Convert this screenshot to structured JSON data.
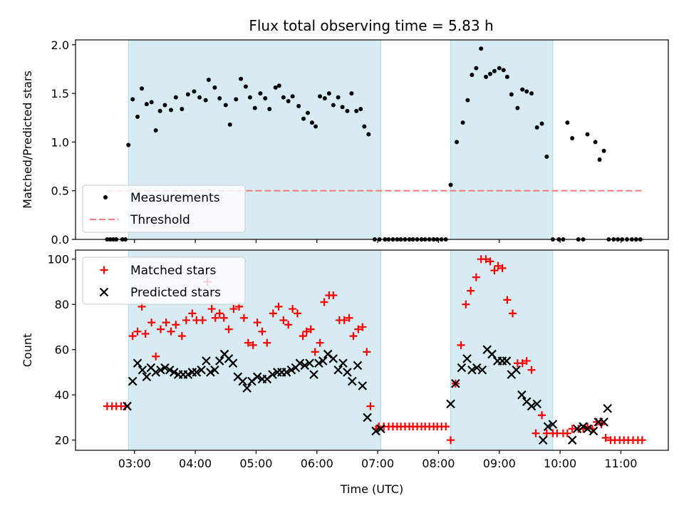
{
  "chart_data": [
    {
      "type": "scatter",
      "title": "Flux total observing time = 5.83 h",
      "xlabel": "",
      "ylabel": "Matched/Predicted stars",
      "xlim": [
        2.03,
        11.78
      ],
      "ylim": [
        0,
        2.05
      ],
      "yticks": [
        0.0,
        0.5,
        1.0,
        1.5,
        2.0
      ],
      "ytick_labels": [
        "0.0",
        "0.5",
        "1.0",
        "1.5",
        "2.0"
      ],
      "legend_position": "lower-left",
      "legend": [
        "Measurements",
        "Threshold"
      ],
      "shaded_intervals": [
        [
          2.9,
          7.05
        ],
        [
          8.2,
          9.88
        ]
      ],
      "threshold": 0.5,
      "threshold_range": [
        2.55,
        11.35
      ],
      "series": [
        {
          "name": "Measurements",
          "marker": "dot",
          "x": [
            2.55,
            2.6,
            2.65,
            2.7,
            2.8,
            2.85,
            2.9,
            2.97,
            3.05,
            3.12,
            3.2,
            3.28,
            3.35,
            3.42,
            3.5,
            3.6,
            3.68,
            3.78,
            3.88,
            3.98,
            4.07,
            4.17,
            4.22,
            4.32,
            4.4,
            4.5,
            4.57,
            4.67,
            4.75,
            4.83,
            4.9,
            4.98,
            5.07,
            5.15,
            5.22,
            5.32,
            5.38,
            5.45,
            5.53,
            5.6,
            5.7,
            5.78,
            5.85,
            5.92,
            5.98,
            6.05,
            6.13,
            6.2,
            6.27,
            6.35,
            6.42,
            6.5,
            6.57,
            6.65,
            6.72,
            6.78,
            6.85,
            6.95,
            7.03,
            7.12,
            7.18,
            7.25,
            7.32,
            7.38,
            7.45,
            7.52,
            7.58,
            7.65,
            7.72,
            7.78,
            7.85,
            7.92,
            7.98,
            8.05,
            8.12,
            8.2,
            8.3,
            8.4,
            8.48,
            8.55,
            8.62,
            8.7,
            8.78,
            8.85,
            8.92,
            9.0,
            9.07,
            9.13,
            9.2,
            9.3,
            9.38,
            9.45,
            9.53,
            9.62,
            9.7,
            9.78,
            9.88,
            9.98,
            10.05,
            10.12,
            10.2,
            10.3,
            10.38,
            10.45,
            10.58,
            10.65,
            10.72,
            10.8,
            10.88,
            10.95,
            11.02,
            11.1,
            11.18,
            11.25,
            11.32
          ],
          "y": [
            0.0,
            0.0,
            0.0,
            0.0,
            0.0,
            0.0,
            0.97,
            1.44,
            1.26,
            1.55,
            1.39,
            1.41,
            1.12,
            1.32,
            1.38,
            1.33,
            1.46,
            1.34,
            1.49,
            1.52,
            1.46,
            1.43,
            1.64,
            1.56,
            1.45,
            1.38,
            1.18,
            1.44,
            1.65,
            1.57,
            1.46,
            1.35,
            1.5,
            1.45,
            1.34,
            1.56,
            1.58,
            1.46,
            1.42,
            1.47,
            1.37,
            1.24,
            1.3,
            1.2,
            1.16,
            1.47,
            1.45,
            1.5,
            1.38,
            1.46,
            1.36,
            1.32,
            1.5,
            1.32,
            1.34,
            1.16,
            1.08,
            0.0,
            0.0,
            0.0,
            0.0,
            0.0,
            0.0,
            0.0,
            0.0,
            0.0,
            0.0,
            0.0,
            0.0,
            0.0,
            0.0,
            0.0,
            0.0,
            0.0,
            0.0,
            0.56,
            1.0,
            1.2,
            1.43,
            1.69,
            1.76,
            1.96,
            1.67,
            1.7,
            1.73,
            1.76,
            1.74,
            1.67,
            1.49,
            1.35,
            1.54,
            1.52,
            1.5,
            1.15,
            1.19,
            0.85,
            0.0,
            0.0,
            0.0,
            1.2,
            1.04,
            0.0,
            0.0,
            1.08,
            1.0,
            0.82,
            0.91,
            0.0,
            0.0,
            0.0,
            0.0,
            0.0,
            0.0,
            0.0,
            0.0
          ]
        }
      ]
    },
    {
      "type": "scatter",
      "title": "",
      "xlabel": "Time (UTC)",
      "ylabel": "Count",
      "xlim": [
        2.03,
        11.78
      ],
      "ylim": [
        15.5,
        104
      ],
      "yticks": [
        20,
        40,
        60,
        80,
        100
      ],
      "ytick_labels": [
        "20",
        "40",
        "60",
        "80",
        "100"
      ],
      "xticks": [
        3,
        4,
        5,
        6,
        7,
        8,
        9,
        10,
        11
      ],
      "xtick_labels": [
        "03:00",
        "04:00",
        "05:00",
        "06:00",
        "07:00",
        "08:00",
        "09:00",
        "10:00",
        "11:00"
      ],
      "legend_position": "upper-left",
      "legend": [
        "Matched stars",
        "Predicted stars"
      ],
      "shaded_intervals": [
        [
          2.9,
          7.05
        ],
        [
          8.2,
          9.88
        ]
      ],
      "series": [
        {
          "name": "Matched stars",
          "marker": "plus",
          "color": "#ff0000",
          "x": [
            2.55,
            2.63,
            2.7,
            2.78,
            2.85,
            2.97,
            3.05,
            3.12,
            3.18,
            3.28,
            3.35,
            3.43,
            3.52,
            3.6,
            3.68,
            3.78,
            3.85,
            3.95,
            4.02,
            4.12,
            4.2,
            4.27,
            4.33,
            4.4,
            4.47,
            4.55,
            4.63,
            4.72,
            4.8,
            4.87,
            4.95,
            5.02,
            5.1,
            5.18,
            5.28,
            5.37,
            5.45,
            5.53,
            5.6,
            5.68,
            5.77,
            5.83,
            5.9,
            5.97,
            6.05,
            6.12,
            6.2,
            6.27,
            6.37,
            6.45,
            6.53,
            6.6,
            6.68,
            6.75,
            6.82,
            6.88,
            6.98,
            7.02,
            7.1,
            7.18,
            7.25,
            7.32,
            7.38,
            7.45,
            7.52,
            7.58,
            7.65,
            7.72,
            7.78,
            7.85,
            7.92,
            7.98,
            8.05,
            8.12,
            8.2,
            8.28,
            8.37,
            8.45,
            8.53,
            8.62,
            8.7,
            8.78,
            8.85,
            8.92,
            8.98,
            9.05,
            9.13,
            9.22,
            9.3,
            9.38,
            9.45,
            9.53,
            9.6,
            9.7,
            9.78,
            9.88,
            9.95,
            10.05,
            10.12,
            10.2,
            10.3,
            10.38,
            10.45,
            10.53,
            10.6,
            10.68,
            10.75,
            10.83,
            10.9,
            10.98,
            11.05,
            11.12,
            11.2,
            11.28,
            11.35
          ],
          "y": [
            35,
            35,
            35,
            35,
            35,
            66,
            68,
            79,
            67,
            72,
            57,
            69,
            72,
            68,
            71,
            66,
            73,
            76,
            73,
            73,
            90,
            78,
            74,
            76,
            74,
            69,
            78,
            79,
            74,
            63,
            62,
            72,
            68,
            63,
            76,
            79,
            73,
            71,
            78,
            76,
            66,
            68,
            69,
            59,
            63,
            81,
            84,
            84,
            73,
            73,
            74,
            66,
            69,
            70,
            59,
            35,
            25,
            26,
            26,
            26,
            26,
            26,
            26,
            26,
            26,
            26,
            26,
            26,
            26,
            26,
            26,
            26,
            26,
            26,
            20,
            45,
            62,
            80,
            86,
            92,
            100,
            100,
            99,
            95,
            97,
            96,
            82,
            76,
            54,
            54,
            55,
            51,
            23,
            31,
            23,
            23,
            23,
            23,
            23,
            25,
            25,
            25,
            26,
            25,
            28,
            27,
            21,
            20,
            20,
            20,
            20,
            20,
            20,
            20,
            20
          ],
          "y_note": ""
        },
        {
          "name": "Predicted stars",
          "marker": "x",
          "color": "#000000",
          "x": [
            2.88,
            2.97,
            3.05,
            3.13,
            3.2,
            3.27,
            3.35,
            3.43,
            3.5,
            3.58,
            3.65,
            3.72,
            3.8,
            3.88,
            3.95,
            4.02,
            4.1,
            4.18,
            4.25,
            4.32,
            4.4,
            4.48,
            4.55,
            4.62,
            4.7,
            4.78,
            4.85,
            4.93,
            5.02,
            5.1,
            5.18,
            5.27,
            5.35,
            5.42,
            5.5,
            5.58,
            5.65,
            5.72,
            5.8,
            5.88,
            5.95,
            6.03,
            6.1,
            6.18,
            6.27,
            6.35,
            6.43,
            6.5,
            6.58,
            6.67,
            6.75,
            6.83,
            6.97,
            7.05,
            8.2,
            8.28,
            8.38,
            8.47,
            8.55,
            8.63,
            8.72,
            8.8,
            8.88,
            8.97,
            9.05,
            9.12,
            9.2,
            9.28,
            9.37,
            9.45,
            9.53,
            9.62,
            9.72,
            9.8,
            9.88,
            10.2,
            10.28,
            10.38,
            10.45,
            10.55,
            10.63,
            10.72,
            10.78
          ],
          "y": [
            35,
            46,
            54,
            51,
            48,
            52,
            50,
            51,
            52,
            51,
            50,
            49,
            49,
            49,
            50,
            50,
            51,
            55,
            50,
            51,
            55,
            58,
            56,
            54,
            48,
            46,
            43,
            46,
            48,
            47,
            47,
            49,
            50,
            50,
            50,
            51,
            52,
            54,
            53,
            54,
            49,
            54,
            55,
            58,
            56,
            51,
            54,
            50,
            46,
            53,
            44,
            30,
            24,
            25,
            36,
            45,
            52,
            56,
            51,
            52,
            51,
            60,
            58,
            55,
            55,
            55,
            49,
            51,
            40,
            37,
            35,
            36,
            20,
            26,
            27,
            20,
            25,
            26,
            25,
            24,
            28,
            28,
            34
          ]
        }
      ]
    }
  ]
}
